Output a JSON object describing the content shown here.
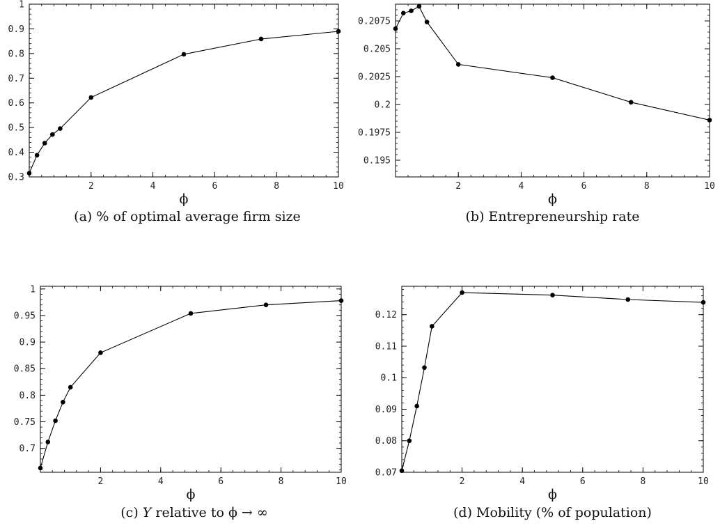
{
  "chart_data": [
    {
      "type": "line",
      "caption": "(a) % of optimal average firm size",
      "xlabel": "ϕ",
      "x": [
        0,
        0.25,
        0.5,
        0.75,
        1,
        2,
        5,
        7.5,
        10
      ],
      "values": [
        0.315,
        0.388,
        0.437,
        0.472,
        0.496,
        0.622,
        0.797,
        0.859,
        0.89
      ],
      "xlim": [
        0,
        10
      ],
      "ylim": [
        0.3,
        1.0
      ],
      "xticks": [
        2,
        4,
        6,
        8,
        10
      ],
      "xtick_labels": [
        "2",
        "4",
        "6",
        "8",
        "10"
      ],
      "yticks": [
        0.3,
        0.4,
        0.5,
        0.6,
        0.7,
        0.8,
        0.9,
        1.0
      ],
      "ytick_labels": [
        "0.3",
        "0.4",
        "0.5",
        "0.6",
        "0.7",
        "0.8",
        "0.9",
        "1"
      ],
      "grid": false,
      "color": "#000000"
    },
    {
      "type": "line",
      "caption": "(b) Entrepreneurship rate",
      "xlabel": "ϕ",
      "x": [
        0,
        0.25,
        0.5,
        0.75,
        1,
        2,
        5,
        7.5,
        10
      ],
      "values": [
        0.2068,
        0.2082,
        0.2084,
        0.2088,
        0.2074,
        0.2036,
        0.2024,
        0.2002,
        0.1986
      ],
      "xlim": [
        0,
        10
      ],
      "ylim": [
        0.1935,
        0.209
      ],
      "xticks": [
        2,
        4,
        6,
        8,
        10
      ],
      "xtick_labels": [
        "2",
        "4",
        "6",
        "8",
        "10"
      ],
      "yticks": [
        0.195,
        0.1975,
        0.2,
        0.2025,
        0.205,
        0.2075
      ],
      "ytick_labels": [
        "0.195",
        "0.1975",
        "0.2",
        "0.2025",
        "0.205",
        "0.2075"
      ],
      "grid": false,
      "color": "#000000"
    },
    {
      "type": "line",
      "caption_italic": "Y",
      "caption": "(c) Y relative to ϕ → ∞",
      "caption_pre": "(c) ",
      "caption_post": " relative to ϕ → ∞",
      "xlabel": "ϕ",
      "x": [
        0,
        0.25,
        0.5,
        0.75,
        1,
        2,
        5,
        7.5,
        10
      ],
      "values": [
        0.663,
        0.712,
        0.752,
        0.787,
        0.815,
        0.88,
        0.954,
        0.97,
        0.978
      ],
      "xlim": [
        0,
        10
      ],
      "ylim": [
        0.655,
        1.005
      ],
      "xticks": [
        2,
        4,
        6,
        8,
        10
      ],
      "xtick_labels": [
        "2",
        "4",
        "6",
        "8",
        "10"
      ],
      "yticks": [
        0.7,
        0.75,
        0.8,
        0.85,
        0.9,
        0.95,
        1.0
      ],
      "ytick_labels": [
        "0.7",
        "0.75",
        "0.8",
        "0.85",
        "0.9",
        "0.95",
        "1"
      ],
      "grid": false,
      "color": "#000000"
    },
    {
      "type": "line",
      "caption": "(d) Mobility (% of population)",
      "xlabel": "ϕ",
      "x": [
        0,
        0.25,
        0.5,
        0.75,
        1,
        2,
        5,
        7.5,
        10
      ],
      "values": [
        0.0705,
        0.08,
        0.091,
        0.1032,
        0.1163,
        0.127,
        0.1262,
        0.1248,
        0.1239
      ],
      "xlim": [
        0,
        10
      ],
      "ylim": [
        0.07,
        0.129
      ],
      "xticks": [
        2,
        4,
        6,
        8,
        10
      ],
      "xtick_labels": [
        "2",
        "4",
        "6",
        "8",
        "10"
      ],
      "yticks": [
        0.07,
        0.08,
        0.09,
        0.1,
        0.11,
        0.12
      ],
      "ytick_labels": [
        "0.07",
        "0.08",
        "0.09",
        "0.1",
        "0.11",
        "0.12"
      ],
      "grid": false,
      "color": "#000000"
    }
  ]
}
